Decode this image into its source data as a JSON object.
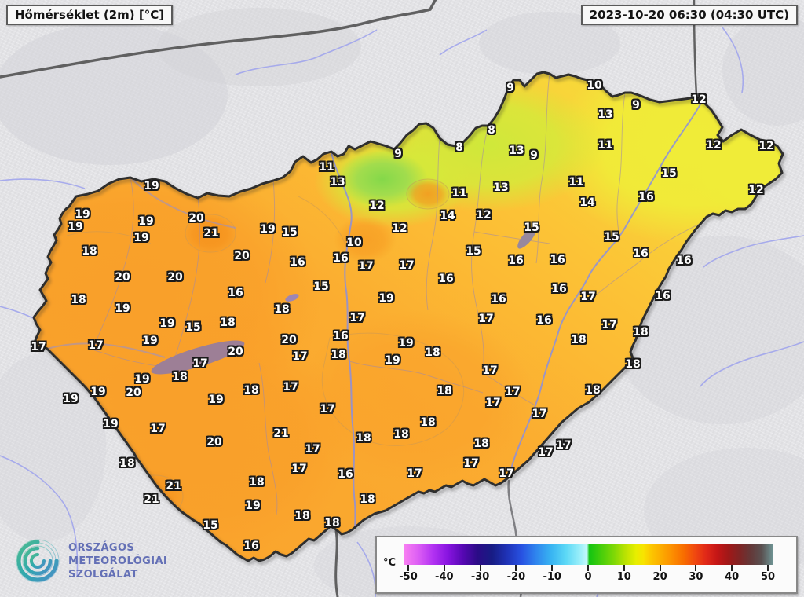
{
  "header": {
    "title": "Hőmérséklet (2m) [°C]",
    "timestamp": "2023-10-20 06:30 (04:30 UTC)"
  },
  "legend": {
    "unit": "°C",
    "ticks": [
      "-50",
      "-40",
      "-30",
      "-20",
      "-10",
      "0",
      "10",
      "20",
      "30",
      "40",
      "50"
    ],
    "gradient": [
      [
        0,
        "#f980f2"
      ],
      [
        4,
        "#dc5ef4"
      ],
      [
        8,
        "#b232f2"
      ],
      [
        12,
        "#8814e0"
      ],
      [
        16,
        "#5708b4"
      ],
      [
        20,
        "#2b0b86"
      ],
      [
        24,
        "#171c84"
      ],
      [
        28,
        "#1f32b6"
      ],
      [
        32,
        "#2852e2"
      ],
      [
        36,
        "#2f86ee"
      ],
      [
        40,
        "#38b4f2"
      ],
      [
        44,
        "#5cd8f6"
      ],
      [
        48,
        "#9ef0fa"
      ],
      [
        49.7,
        "#c4f8fc"
      ],
      [
        50.3,
        "#12c412"
      ],
      [
        53,
        "#3ecc0c"
      ],
      [
        57,
        "#7ed806"
      ],
      [
        60,
        "#b8e202"
      ],
      [
        63,
        "#e8ee00"
      ],
      [
        65,
        "#f8e400"
      ],
      [
        67,
        "#fcc800"
      ],
      [
        70,
        "#fcaa00"
      ],
      [
        73,
        "#fc8c00"
      ],
      [
        76,
        "#f86c00"
      ],
      [
        79,
        "#f04810"
      ],
      [
        82,
        "#e02818"
      ],
      [
        85,
        "#c41616"
      ],
      [
        88,
        "#a01818"
      ],
      [
        91,
        "#802424"
      ],
      [
        94,
        "#643838"
      ],
      [
        97,
        "#5a5050"
      ],
      [
        100,
        "#6e9292"
      ]
    ]
  },
  "branding": {
    "org_lines": [
      "ORSZÁGOS",
      "METEOROLÓGIAI",
      "SZOLGÁLAT"
    ],
    "logo": "omsz-swirl",
    "text_color": "#6470b6"
  },
  "map": {
    "region": "Hungary",
    "colors": {
      "outside": "#e3e3e6",
      "border": "#2e2e2e",
      "warm_west": "#f9a22c",
      "mild_center": "#fbbd34",
      "cool_northeast": "#f0ea3c",
      "cold_north_green": "#8ed84e",
      "lake": "#9d7f96",
      "river": "#8a8fe0"
    },
    "stations": [
      [
        9,
        650,
        112
      ],
      [
        10,
        757,
        109
      ],
      [
        13,
        771,
        146
      ],
      [
        9,
        810,
        134
      ],
      [
        12,
        890,
        127
      ],
      [
        8,
        626,
        166
      ],
      [
        8,
        585,
        188
      ],
      [
        13,
        658,
        192
      ],
      [
        9,
        680,
        198
      ],
      [
        11,
        771,
        185
      ],
      [
        12,
        909,
        185
      ],
      [
        12,
        976,
        186
      ],
      [
        9,
        507,
        196
      ],
      [
        11,
        416,
        213
      ],
      [
        13,
        430,
        232
      ],
      [
        11,
        734,
        232
      ],
      [
        15,
        852,
        221
      ],
      [
        13,
        638,
        239
      ],
      [
        11,
        585,
        246
      ],
      [
        14,
        748,
        258
      ],
      [
        16,
        823,
        251
      ],
      [
        12,
        963,
        242
      ],
      [
        12,
        480,
        262
      ],
      [
        14,
        570,
        275
      ],
      [
        12,
        616,
        274
      ],
      [
        15,
        677,
        290
      ],
      [
        12,
        509,
        291
      ],
      [
        15,
        779,
        302
      ],
      [
        15,
        603,
        320
      ],
      [
        10,
        451,
        309
      ],
      [
        16,
        434,
        329
      ],
      [
        17,
        466,
        339
      ],
      [
        17,
        518,
        338
      ],
      [
        16,
        657,
        332
      ],
      [
        16,
        710,
        331
      ],
      [
        16,
        816,
        323
      ],
      [
        16,
        871,
        332
      ],
      [
        16,
        568,
        355
      ],
      [
        15,
        409,
        365
      ],
      [
        16,
        635,
        381
      ],
      [
        16,
        712,
        368
      ],
      [
        17,
        749,
        378
      ],
      [
        16,
        844,
        377
      ],
      [
        19,
        492,
        380
      ],
      [
        17,
        455,
        405
      ],
      [
        17,
        619,
        406
      ],
      [
        16,
        693,
        408
      ],
      [
        17,
        776,
        414
      ],
      [
        18,
        816,
        423
      ],
      [
        16,
        434,
        428
      ],
      [
        18,
        737,
        433
      ],
      [
        19,
        517,
        437
      ],
      [
        18,
        551,
        449
      ],
      [
        18,
        431,
        452
      ],
      [
        19,
        500,
        459
      ],
      [
        18,
        806,
        464
      ],
      [
        17,
        624,
        472
      ],
      [
        19,
        193,
        237
      ],
      [
        19,
        105,
        273
      ],
      [
        19,
        96,
        289
      ],
      [
        19,
        186,
        282
      ],
      [
        19,
        180,
        303
      ],
      [
        20,
        250,
        278
      ],
      [
        21,
        269,
        297
      ],
      [
        19,
        341,
        292
      ],
      [
        15,
        369,
        296
      ],
      [
        18,
        114,
        320
      ],
      [
        20,
        308,
        326
      ],
      [
        16,
        379,
        334
      ],
      [
        20,
        156,
        353
      ],
      [
        20,
        223,
        353
      ],
      [
        16,
        300,
        373
      ],
      [
        18,
        100,
        382
      ],
      [
        18,
        359,
        394
      ],
      [
        19,
        156,
        393
      ],
      [
        19,
        213,
        412
      ],
      [
        15,
        246,
        417
      ],
      [
        18,
        290,
        411
      ],
      [
        20,
        368,
        433
      ],
      [
        17,
        49,
        442
      ],
      [
        17,
        122,
        440
      ],
      [
        19,
        191,
        434
      ],
      [
        20,
        300,
        448
      ],
      [
        17,
        255,
        463
      ],
      [
        17,
        382,
        454
      ],
      [
        19,
        181,
        483
      ],
      [
        18,
        229,
        480
      ],
      [
        18,
        320,
        497
      ],
      [
        20,
        170,
        500
      ],
      [
        19,
        125,
        499
      ],
      [
        19,
        90,
        508
      ],
      [
        19,
        275,
        509
      ],
      [
        17,
        370,
        493
      ],
      [
        19,
        141,
        540
      ],
      [
        17,
        201,
        546
      ],
      [
        20,
        273,
        563
      ],
      [
        21,
        358,
        552
      ],
      [
        18,
        162,
        590
      ],
      [
        21,
        221,
        619
      ],
      [
        21,
        193,
        636
      ],
      [
        15,
        268,
        669
      ],
      [
        16,
        320,
        695
      ],
      [
        18,
        385,
        657
      ],
      [
        18,
        423,
        666
      ],
      [
        17,
        417,
        521
      ],
      [
        18,
        566,
        498
      ],
      [
        18,
        545,
        538
      ],
      [
        18,
        463,
        558
      ],
      [
        18,
        511,
        553
      ],
      [
        17,
        398,
        572
      ],
      [
        16,
        440,
        604
      ],
      [
        17,
        528,
        603
      ],
      [
        18,
        468,
        636
      ],
      [
        17,
        600,
        590
      ],
      [
        17,
        645,
        603
      ],
      [
        18,
        613,
        565
      ],
      [
        17,
        695,
        576
      ],
      [
        17,
        718,
        567
      ],
      [
        17,
        653,
        499
      ],
      [
        17,
        628,
        513
      ],
      [
        17,
        687,
        527
      ],
      [
        18,
        755,
        497
      ],
      [
        18,
        327,
        614
      ],
      [
        19,
        322,
        644
      ],
      [
        17,
        381,
        597
      ]
    ]
  }
}
